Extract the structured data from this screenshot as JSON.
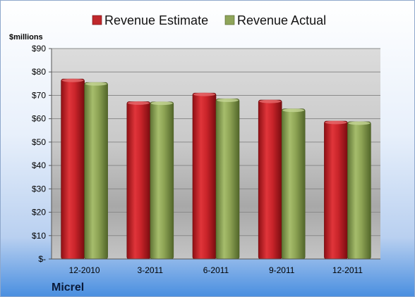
{
  "chart_data": {
    "type": "bar",
    "categories": [
      "12-2010",
      "3-2011",
      "6-2011",
      "9-2011",
      "12-2011"
    ],
    "series": [
      {
        "name": "Revenue Estimate",
        "values": [
          77,
          67.3,
          71,
          68,
          59
        ],
        "color": "#c0282c"
      },
      {
        "name": "Revenue Actual",
        "values": [
          75.5,
          67.2,
          68.5,
          64.2,
          58.7
        ],
        "color": "#8fa55a"
      }
    ],
    "ylabel": "$millions",
    "ylim": [
      0,
      90
    ],
    "yticks": [
      0,
      10,
      20,
      30,
      40,
      50,
      60,
      70,
      80,
      90
    ],
    "ytick_labels": [
      "$-",
      "$10",
      "$20",
      "$30",
      "$40",
      "$50",
      "$60",
      "$70",
      "$80",
      "$90"
    ],
    "legend_position": "top",
    "grid": true,
    "footer_label": "Micrel"
  }
}
